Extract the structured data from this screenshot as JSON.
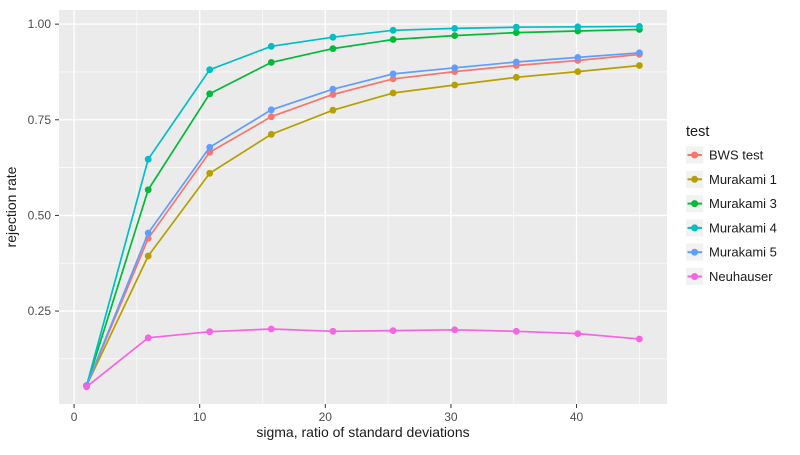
{
  "figure": {
    "background": "#FFFFFF",
    "panel_background": "#EBEBEB",
    "grid_color": "#FFFFFF",
    "tick_mark_color": "#333333",
    "tick_label_color": "#4D4D4D",
    "axis_title_color": "#1A1A1A",
    "legend_key_fill": "#F2F2F2"
  },
  "chart_data": {
    "type": "line",
    "title": "",
    "xlabel": "sigma, ratio of standard deviations",
    "ylabel": "rejection rate",
    "legend_title": "test",
    "legend_position": "right",
    "grid": true,
    "xlim": [
      -1.2,
      47.2
    ],
    "ylim": [
      0.007,
      1.037
    ],
    "x_ticks": [
      0,
      10,
      20,
      30,
      40
    ],
    "x_tick_labels": [
      "0",
      "10",
      "20",
      "30",
      "40"
    ],
    "y_ticks": [
      0.25,
      0.5,
      0.75,
      1.0
    ],
    "y_tick_labels": [
      "0.25",
      "0.50",
      "0.75",
      "1.00"
    ],
    "x_minor": [
      5,
      15,
      25,
      35,
      45
    ],
    "y_minor": [
      0.125,
      0.375,
      0.625,
      0.875
    ],
    "x": [
      1,
      5.9,
      10.8,
      15.7,
      20.6,
      25.4,
      30.3,
      35.2,
      40.1,
      45
    ],
    "series": [
      {
        "name": "BWS test",
        "color": "#F8766D",
        "values": [
          0.055,
          0.44,
          0.665,
          0.758,
          0.816,
          0.857,
          0.876,
          0.892,
          0.905,
          0.921
        ]
      },
      {
        "name": "Murakami 1",
        "color": "#B79F00",
        "values": [
          0.055,
          0.394,
          0.61,
          0.712,
          0.775,
          0.82,
          0.841,
          0.861,
          0.876,
          0.892
        ]
      },
      {
        "name": "Murakami 3",
        "color": "#00BA38",
        "values": [
          0.055,
          0.567,
          0.818,
          0.9,
          0.936,
          0.96,
          0.97,
          0.978,
          0.982,
          0.986
        ]
      },
      {
        "name": "Murakami 4",
        "color": "#00BFC4",
        "values": [
          0.055,
          0.647,
          0.881,
          0.942,
          0.966,
          0.984,
          0.989,
          0.992,
          0.993,
          0.994
        ]
      },
      {
        "name": "Murakami 5",
        "color": "#619CFF",
        "values": [
          0.055,
          0.454,
          0.678,
          0.776,
          0.83,
          0.87,
          0.886,
          0.901,
          0.913,
          0.925
        ]
      },
      {
        "name": "Neuhauser",
        "color": "#F564E3",
        "values": [
          0.052,
          0.18,
          0.196,
          0.203,
          0.197,
          0.199,
          0.201,
          0.197,
          0.191,
          0.177
        ]
      }
    ]
  }
}
